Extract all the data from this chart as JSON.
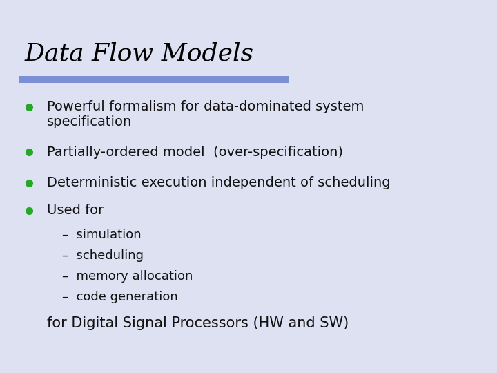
{
  "title": "Data Flow Models",
  "title_fontsize": 26,
  "title_color": "#000000",
  "title_font": "DejaVu Serif",
  "background_color": "#dde1f2",
  "bar_color": "#7b8fd4",
  "bullet_color": "#22aa22",
  "bullet_items_line1": [
    "Powerful formalism for data-dominated system",
    "Partially-ordered model  (over-specification)",
    "Deterministic execution independent of scheduling",
    "Used for"
  ],
  "bullet_items_line2": [
    "specification",
    "",
    "",
    ""
  ],
  "bullet_fontsize": 14,
  "sub_items": [
    "simulation",
    "scheduling",
    "memory allocation",
    "code generation"
  ],
  "sub_fontsize": 13,
  "footer": "for Digital Signal Processors (HW and SW)",
  "footer_fontsize": 15,
  "text_color": "#111111"
}
